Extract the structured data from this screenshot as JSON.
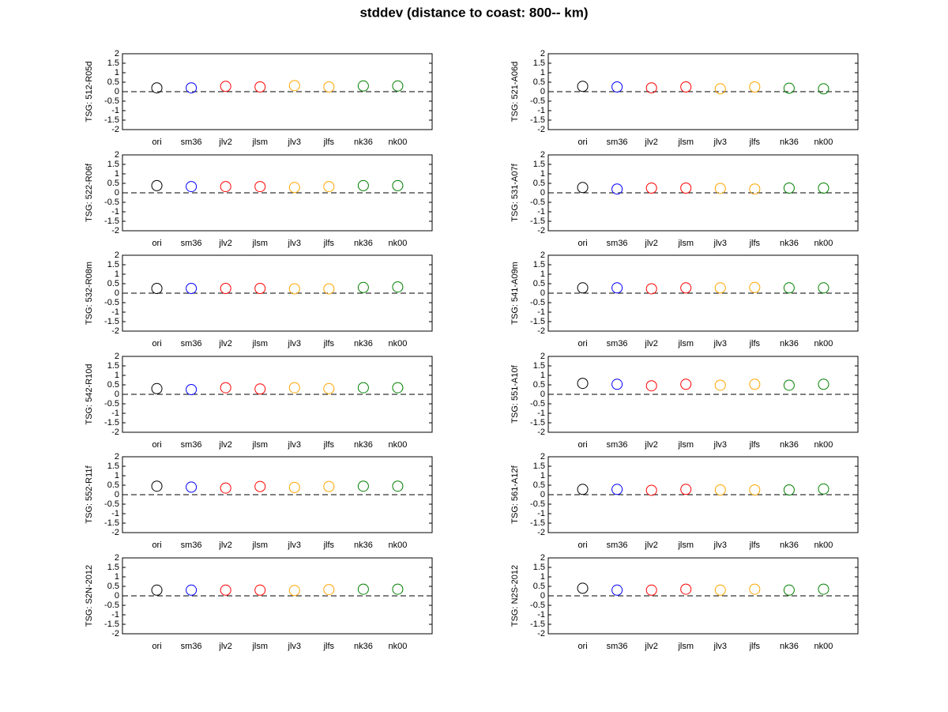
{
  "title": "stddev (distance to coast: 800-- km)",
  "chart_data": [
    {
      "type": "scatter",
      "ylabel": "TSG: 512-R05d",
      "categories": [
        "ori",
        "sm36",
        "jlv2",
        "jlsm",
        "jlv3",
        "jlfs",
        "nk36",
        "nk00"
      ],
      "values": [
        0.2,
        0.2,
        0.28,
        0.25,
        0.32,
        0.25,
        0.3,
        0.3
      ],
      "colors": [
        "#000000",
        "#0000ff",
        "#ff0000",
        "#ff0000",
        "#ffa500",
        "#ffa500",
        "#008000",
        "#008000"
      ],
      "ylim": [
        -2,
        2
      ],
      "yticks": [
        -2,
        -1.5,
        -1,
        -0.5,
        0,
        0.5,
        1,
        1.5,
        2
      ],
      "hline": 0
    },
    {
      "type": "scatter",
      "ylabel": "TSG: 521-A06d",
      "categories": [
        "ori",
        "sm36",
        "jlv2",
        "jlsm",
        "jlv3",
        "jlfs",
        "nk36",
        "nk00"
      ],
      "values": [
        0.28,
        0.25,
        0.2,
        0.25,
        0.15,
        0.25,
        0.18,
        0.15
      ],
      "colors": [
        "#000000",
        "#0000ff",
        "#ff0000",
        "#ff0000",
        "#ffa500",
        "#ffa500",
        "#008000",
        "#008000"
      ],
      "ylim": [
        -2,
        2
      ],
      "yticks": [
        -2,
        -1.5,
        -1,
        -0.5,
        0,
        0.5,
        1,
        1.5,
        2
      ],
      "hline": 0
    },
    {
      "type": "scatter",
      "ylabel": "TSG: 522-R06f",
      "categories": [
        "ori",
        "sm36",
        "jlv2",
        "jlsm",
        "jlv3",
        "jlfs",
        "nk36",
        "nk00"
      ],
      "values": [
        0.38,
        0.33,
        0.33,
        0.33,
        0.28,
        0.33,
        0.38,
        0.38
      ],
      "colors": [
        "#000000",
        "#0000ff",
        "#ff0000",
        "#ff0000",
        "#ffa500",
        "#ffa500",
        "#008000",
        "#008000"
      ],
      "ylim": [
        -2,
        2
      ],
      "yticks": [
        -2,
        -1.5,
        -1,
        -0.5,
        0,
        0.5,
        1,
        1.5,
        2
      ],
      "hline": 0
    },
    {
      "type": "scatter",
      "ylabel": "TSG: 531-A07f",
      "categories": [
        "ori",
        "sm36",
        "jlv2",
        "jlsm",
        "jlv3",
        "jlfs",
        "nk36",
        "nk00"
      ],
      "values": [
        0.28,
        0.2,
        0.25,
        0.25,
        0.23,
        0.2,
        0.25,
        0.25
      ],
      "colors": [
        "#000000",
        "#0000ff",
        "#ff0000",
        "#ff0000",
        "#ffa500",
        "#ffa500",
        "#008000",
        "#008000"
      ],
      "ylim": [
        -2,
        2
      ],
      "yticks": [
        -2,
        -1.5,
        -1,
        -0.5,
        0,
        0.5,
        1,
        1.5,
        2
      ],
      "hline": 0
    },
    {
      "type": "scatter",
      "ylabel": "TSG: 532-R08m",
      "categories": [
        "ori",
        "sm36",
        "jlv2",
        "jlsm",
        "jlv3",
        "jlfs",
        "nk36",
        "nk00"
      ],
      "values": [
        0.25,
        0.25,
        0.25,
        0.25,
        0.23,
        0.23,
        0.3,
        0.33
      ],
      "colors": [
        "#000000",
        "#0000ff",
        "#ff0000",
        "#ff0000",
        "#ffa500",
        "#ffa500",
        "#008000",
        "#008000"
      ],
      "ylim": [
        -2,
        2
      ],
      "yticks": [
        -2,
        -1.5,
        -1,
        -0.5,
        0,
        0.5,
        1,
        1.5,
        2
      ],
      "hline": 0
    },
    {
      "type": "scatter",
      "ylabel": "TSG: 541-A09m",
      "categories": [
        "ori",
        "sm36",
        "jlv2",
        "jlsm",
        "jlv3",
        "jlfs",
        "nk36",
        "nk00"
      ],
      "values": [
        0.28,
        0.28,
        0.23,
        0.28,
        0.28,
        0.3,
        0.28,
        0.28
      ],
      "colors": [
        "#000000",
        "#0000ff",
        "#ff0000",
        "#ff0000",
        "#ffa500",
        "#ffa500",
        "#008000",
        "#008000"
      ],
      "ylim": [
        -2,
        2
      ],
      "yticks": [
        -2,
        -1.5,
        -1,
        -0.5,
        0,
        0.5,
        1,
        1.5,
        2
      ],
      "hline": 0
    },
    {
      "type": "scatter",
      "ylabel": "TSG: 542-R10d",
      "categories": [
        "ori",
        "sm36",
        "jlv2",
        "jlsm",
        "jlv3",
        "jlfs",
        "nk36",
        "nk00"
      ],
      "values": [
        0.3,
        0.25,
        0.35,
        0.28,
        0.35,
        0.3,
        0.35,
        0.35
      ],
      "colors": [
        "#000000",
        "#0000ff",
        "#ff0000",
        "#ff0000",
        "#ffa500",
        "#ffa500",
        "#008000",
        "#008000"
      ],
      "ylim": [
        -2,
        2
      ],
      "yticks": [
        -2,
        -1.5,
        -1,
        -0.5,
        0,
        0.5,
        1,
        1.5,
        2
      ],
      "hline": 0
    },
    {
      "type": "scatter",
      "ylabel": "TSG: 551-A10f",
      "categories": [
        "ori",
        "sm36",
        "jlv2",
        "jlsm",
        "jlv3",
        "jlfs",
        "nk36",
        "nk00"
      ],
      "values": [
        0.58,
        0.53,
        0.45,
        0.53,
        0.48,
        0.53,
        0.48,
        0.53
      ],
      "colors": [
        "#000000",
        "#0000ff",
        "#ff0000",
        "#ff0000",
        "#ffa500",
        "#ffa500",
        "#008000",
        "#008000"
      ],
      "ylim": [
        -2,
        2
      ],
      "yticks": [
        -2,
        -1.5,
        -1,
        -0.5,
        0,
        0.5,
        1,
        1.5,
        2
      ],
      "hline": 0
    },
    {
      "type": "scatter",
      "ylabel": "TSG: 552-R11f",
      "categories": [
        "ori",
        "sm36",
        "jlv2",
        "jlsm",
        "jlv3",
        "jlfs",
        "nk36",
        "nk00"
      ],
      "values": [
        0.45,
        0.4,
        0.35,
        0.43,
        0.38,
        0.43,
        0.45,
        0.45
      ],
      "colors": [
        "#000000",
        "#0000ff",
        "#ff0000",
        "#ff0000",
        "#ffa500",
        "#ffa500",
        "#008000",
        "#008000"
      ],
      "ylim": [
        -2,
        2
      ],
      "yticks": [
        -2,
        -1.5,
        -1,
        -0.5,
        0,
        0.5,
        1,
        1.5,
        2
      ],
      "hline": 0
    },
    {
      "type": "scatter",
      "ylabel": "TSG: 561-A12f",
      "categories": [
        "ori",
        "sm36",
        "jlv2",
        "jlsm",
        "jlv3",
        "jlfs",
        "nk36",
        "nk00"
      ],
      "values": [
        0.28,
        0.28,
        0.23,
        0.28,
        0.25,
        0.25,
        0.25,
        0.3
      ],
      "colors": [
        "#000000",
        "#0000ff",
        "#ff0000",
        "#ff0000",
        "#ffa500",
        "#ffa500",
        "#008000",
        "#008000"
      ],
      "ylim": [
        -2,
        2
      ],
      "yticks": [
        -2,
        -1.5,
        -1,
        -0.5,
        0,
        0.5,
        1,
        1.5,
        2
      ],
      "hline": 0
    },
    {
      "type": "scatter",
      "ylabel": "TSG: S2N-2012",
      "categories": [
        "ori",
        "sm36",
        "jlv2",
        "jlsm",
        "jlv3",
        "jlfs",
        "nk36",
        "nk00"
      ],
      "values": [
        0.3,
        0.3,
        0.3,
        0.3,
        0.28,
        0.33,
        0.35,
        0.35
      ],
      "colors": [
        "#000000",
        "#0000ff",
        "#ff0000",
        "#ff0000",
        "#ffa500",
        "#ffa500",
        "#008000",
        "#008000"
      ],
      "ylim": [
        -2,
        2
      ],
      "yticks": [
        -2,
        -1.5,
        -1,
        -0.5,
        0,
        0.5,
        1,
        1.5,
        2
      ],
      "hline": 0
    },
    {
      "type": "scatter",
      "ylabel": "TSG: N2S-2012",
      "categories": [
        "ori",
        "sm36",
        "jlv2",
        "jlsm",
        "jlv3",
        "jlfs",
        "nk36",
        "nk00"
      ],
      "values": [
        0.4,
        0.3,
        0.3,
        0.35,
        0.3,
        0.35,
        0.3,
        0.35
      ],
      "colors": [
        "#000000",
        "#0000ff",
        "#ff0000",
        "#ff0000",
        "#ffa500",
        "#ffa500",
        "#008000",
        "#008000"
      ],
      "ylim": [
        -2,
        2
      ],
      "yticks": [
        -2,
        -1.5,
        -1,
        -0.5,
        0,
        0.5,
        1,
        1.5,
        2
      ],
      "hline": 0
    }
  ]
}
